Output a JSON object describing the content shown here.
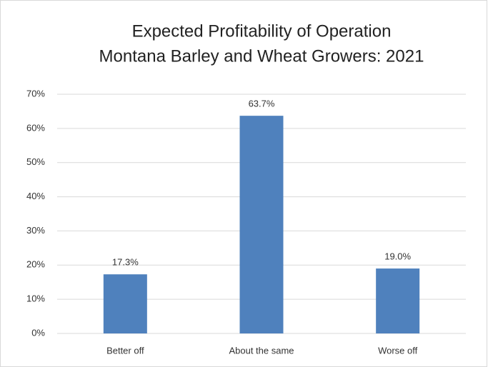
{
  "chart_data": {
    "type": "bar",
    "title": "Expected Profitability of Operation",
    "subtitle": "Montana Barley and Wheat Growers: 2021",
    "categories": [
      "Better off",
      "About the same",
      "Worse off"
    ],
    "values": [
      17.3,
      63.7,
      19.0
    ],
    "value_labels": [
      "17.3%",
      "63.7%",
      "19.0%"
    ],
    "color": "#4f81bd",
    "ylim": [
      0,
      70
    ],
    "yticks": [
      {
        "value": 0,
        "label": "0%"
      },
      {
        "value": 10,
        "label": "10%"
      },
      {
        "value": 20,
        "label": "20%"
      },
      {
        "value": 30,
        "label": "30%"
      },
      {
        "value": 40,
        "label": "40%"
      },
      {
        "value": 50,
        "label": "50%"
      },
      {
        "value": 60,
        "label": "60%"
      },
      {
        "value": 70,
        "label": "70%"
      }
    ],
    "grid": true
  }
}
